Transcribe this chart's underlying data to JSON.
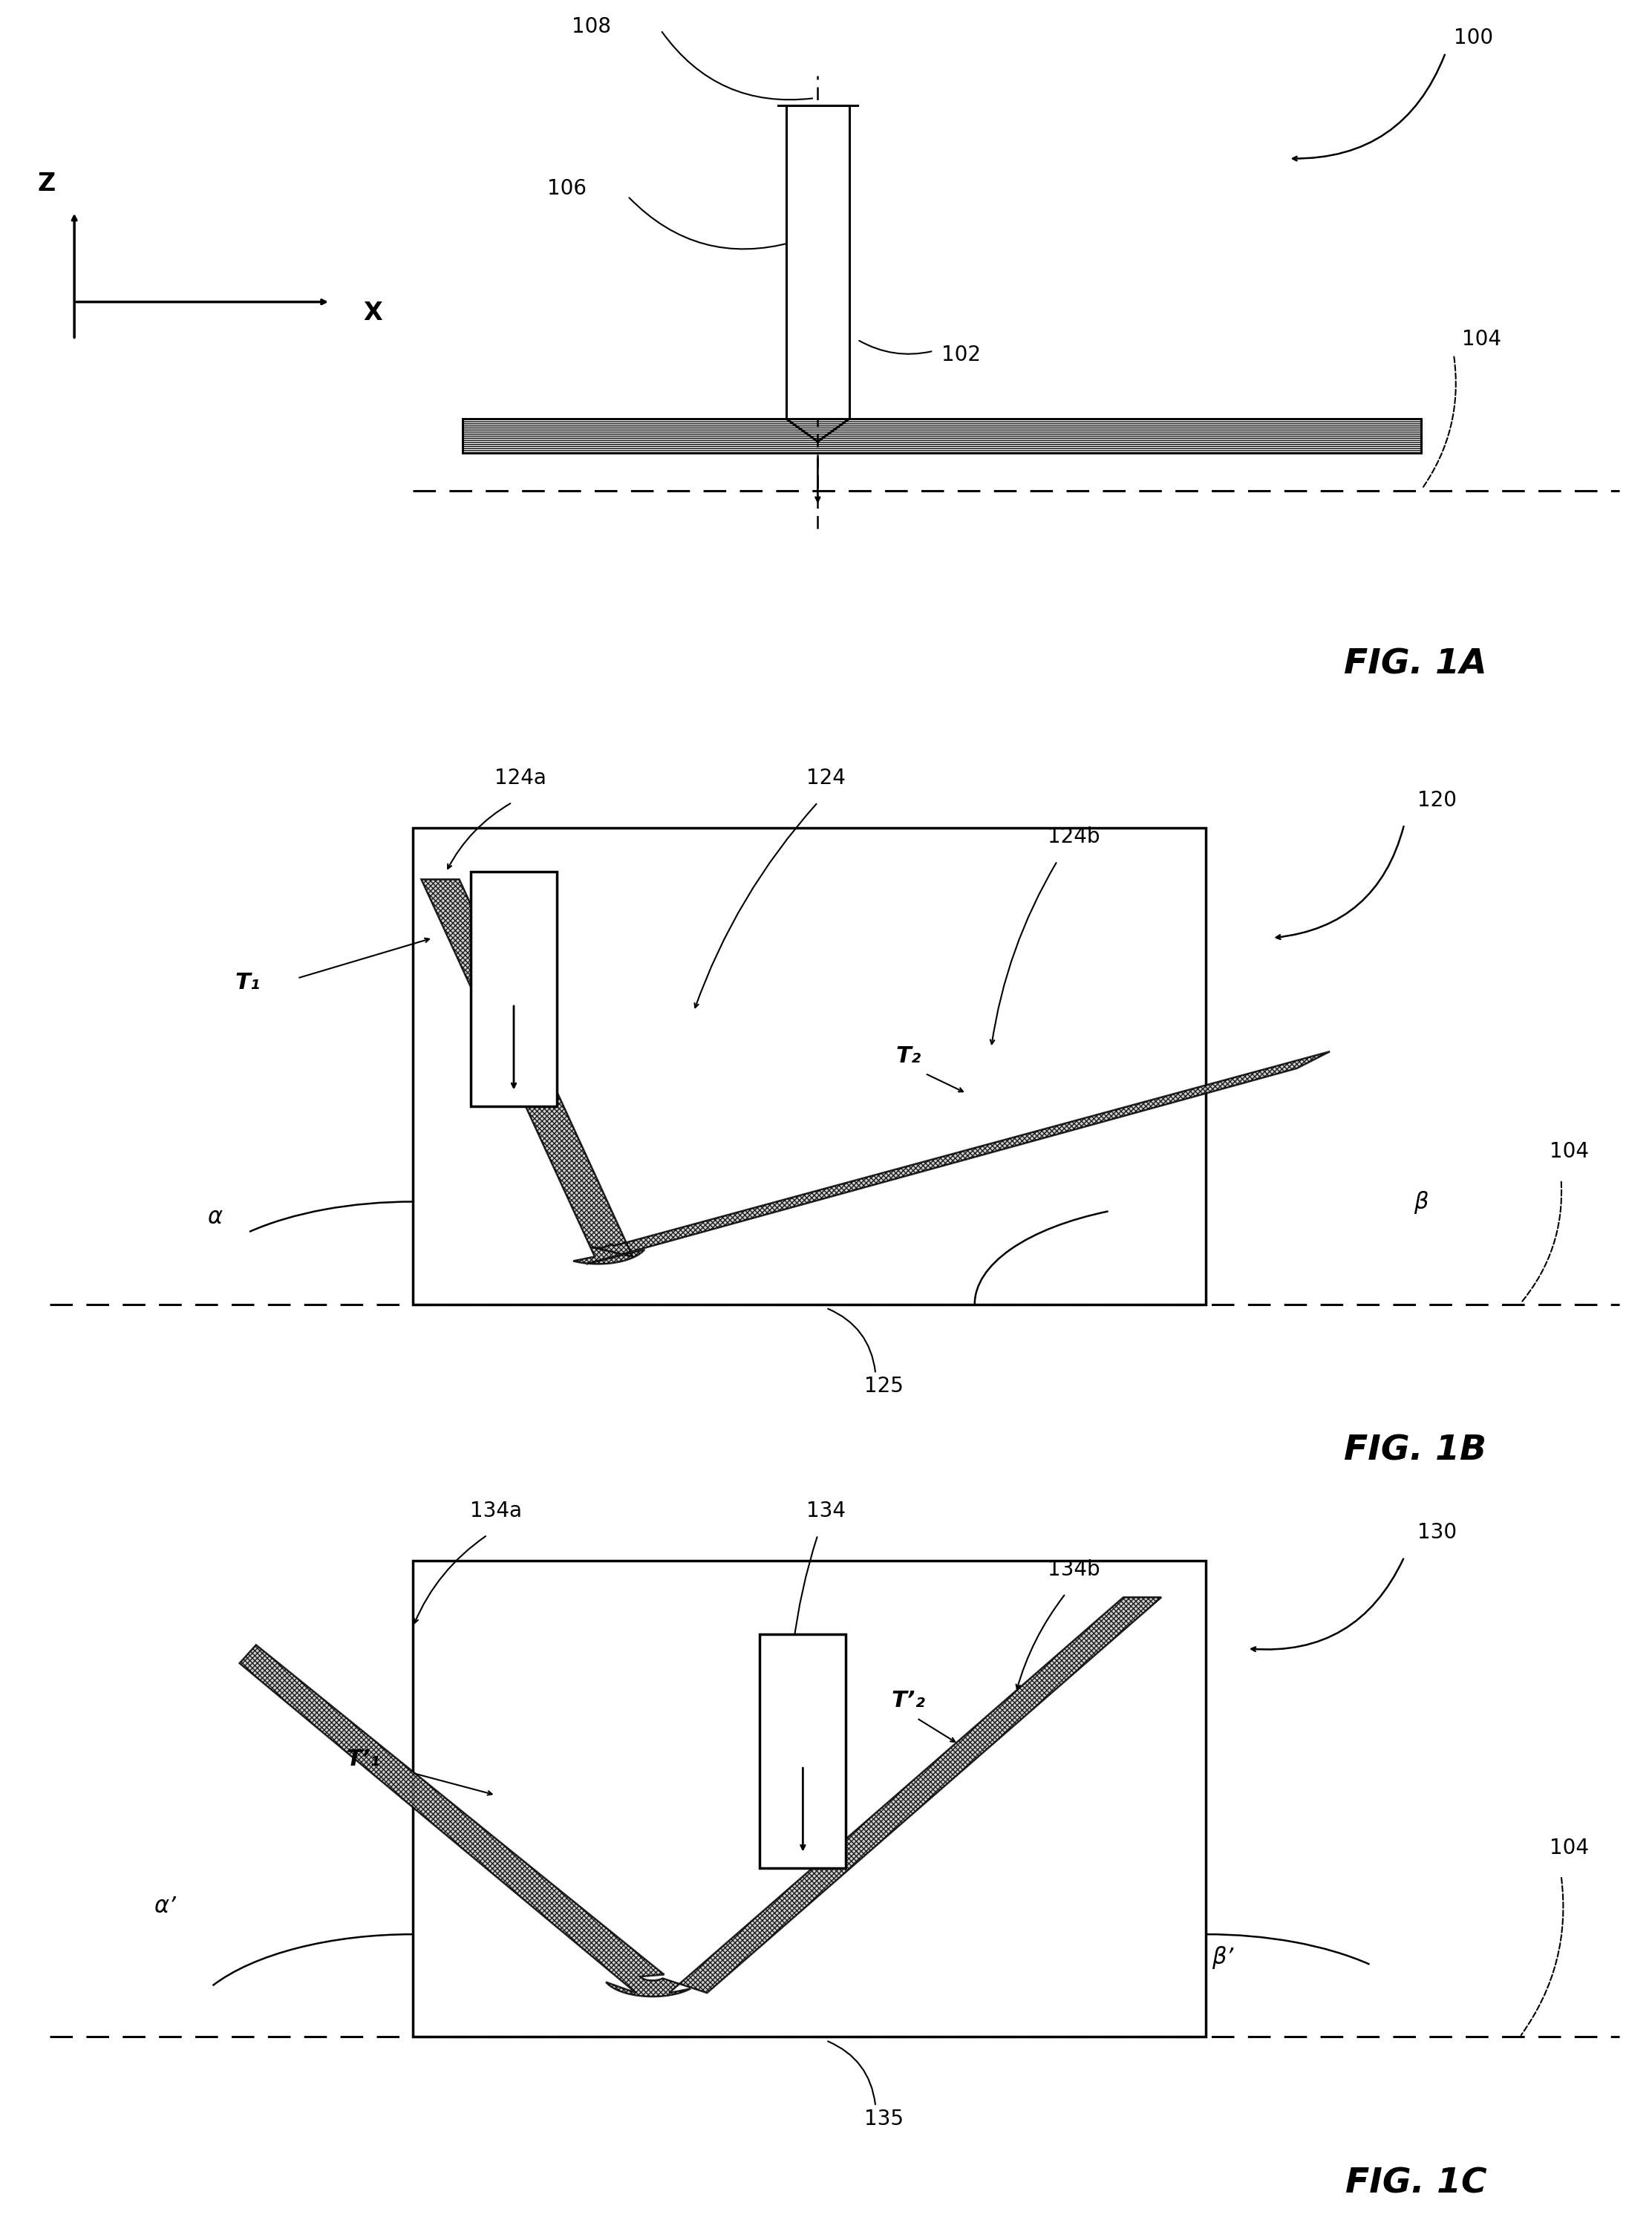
{
  "bg_color": "#ffffff",
  "fig1a": {
    "title": "FIG. 1A",
    "label_100": "100",
    "label_102": "102",
    "label_104": "104",
    "label_106": "106",
    "label_108": "108"
  },
  "fig1b": {
    "title": "FIG. 1B",
    "label_120": "120",
    "label_124": "124",
    "label_124a": "124a",
    "label_124b": "124b",
    "label_125": "125",
    "label_104": "104",
    "label_T1": "T₁",
    "label_T2": "T₂",
    "label_alpha": "α",
    "label_beta": "β"
  },
  "fig1c": {
    "title": "FIG. 1C",
    "label_130": "130",
    "label_134": "134",
    "label_134a": "134a",
    "label_134b": "134b",
    "label_135": "135",
    "label_104": "104",
    "label_T1p": "T’₁",
    "label_T2p": "T’₂",
    "label_alphap": "α’",
    "label_betap": "β’"
  }
}
